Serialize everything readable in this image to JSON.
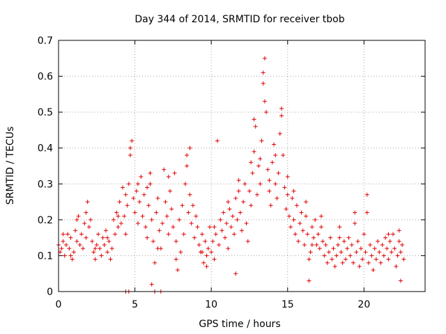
{
  "chart_data": {
    "type": "scatter",
    "title": "Day 344 of 2014, SRMTID for receiver tbob",
    "xlabel": "GPS time / hours",
    "ylabel": "SRMTID / TECUs",
    "xlim": [
      0,
      24
    ],
    "ylim": [
      0,
      0.7
    ],
    "xticks": [
      0,
      5,
      10,
      15,
      20
    ],
    "yticks": [
      0,
      0.1,
      0.2,
      0.3,
      0.4,
      0.5,
      0.6,
      0.7
    ],
    "xtick_labels": [
      "0",
      "5",
      "10",
      "15",
      "20"
    ],
    "ytick_labels": [
      "0",
      "0.1",
      "0.2",
      "0.3",
      "0.4",
      "0.5",
      "0.6",
      "0.7"
    ],
    "grid": true,
    "marker": "plus",
    "color": "#e00000",
    "series": [
      {
        "name": "SRMTID",
        "points": [
          [
            0.0,
            0.13
          ],
          [
            0.1,
            0.11
          ],
          [
            0.2,
            0.12
          ],
          [
            0.3,
            0.14
          ],
          [
            0.4,
            0.1
          ],
          [
            0.5,
            0.13
          ],
          [
            0.6,
            0.16
          ],
          [
            0.7,
            0.12
          ],
          [
            0.8,
            0.15
          ],
          [
            0.9,
            0.09
          ],
          [
            1.0,
            0.11
          ],
          [
            1.1,
            0.17
          ],
          [
            1.2,
            0.14
          ],
          [
            1.3,
            0.21
          ],
          [
            1.4,
            0.13
          ],
          [
            1.5,
            0.16
          ],
          [
            1.6,
            0.12
          ],
          [
            1.7,
            0.19
          ],
          [
            1.8,
            0.15
          ],
          [
            1.9,
            0.25
          ],
          [
            2.0,
            0.18
          ],
          [
            2.1,
            0.2
          ],
          [
            2.2,
            0.14
          ],
          [
            2.3,
            0.11
          ],
          [
            2.4,
            0.09
          ],
          [
            2.5,
            0.13
          ],
          [
            2.6,
            0.16
          ],
          [
            2.7,
            0.12
          ],
          [
            2.8,
            0.1
          ],
          [
            2.9,
            0.15
          ],
          [
            3.0,
            0.13
          ],
          [
            3.1,
            0.17
          ],
          [
            3.2,
            0.11
          ],
          [
            3.3,
            0.14
          ],
          [
            3.4,
            0.09
          ],
          [
            3.5,
            0.12
          ],
          [
            3.6,
            0.2
          ],
          [
            3.7,
            0.16
          ],
          [
            3.8,
            0.22
          ],
          [
            3.9,
            0.18
          ],
          [
            4.0,
            0.25
          ],
          [
            4.1,
            0.19
          ],
          [
            4.2,
            0.29
          ],
          [
            4.3,
            0.21
          ],
          [
            4.4,
            0.16
          ],
          [
            4.5,
            0.24
          ],
          [
            4.6,
            0.3
          ],
          [
            4.7,
            0.38
          ],
          [
            4.8,
            0.42
          ],
          [
            4.9,
            0.26
          ],
          [
            5.0,
            0.22
          ],
          [
            5.1,
            0.28
          ],
          [
            5.2,
            0.19
          ],
          [
            5.3,
            0.25
          ],
          [
            5.4,
            0.32
          ],
          [
            5.5,
            0.21
          ],
          [
            5.6,
            0.27
          ],
          [
            5.7,
            0.18
          ],
          [
            5.8,
            0.15
          ],
          [
            5.9,
            0.24
          ],
          [
            6.0,
            0.3
          ],
          [
            6.1,
            0.2
          ],
          [
            6.2,
            0.14
          ],
          [
            6.3,
            0.08
          ],
          [
            6.4,
            0.22
          ],
          [
            6.5,
            0.26
          ],
          [
            6.6,
            0.17
          ],
          [
            6.7,
            0.12
          ],
          [
            6.8,
            0.19
          ],
          [
            6.9,
            0.34
          ],
          [
            7.0,
            0.25
          ],
          [
            7.1,
            0.21
          ],
          [
            7.2,
            0.16
          ],
          [
            7.3,
            0.28
          ],
          [
            7.4,
            0.23
          ],
          [
            7.5,
            0.18
          ],
          [
            7.6,
            0.33
          ],
          [
            7.7,
            0.14
          ],
          [
            7.8,
            0.06
          ],
          [
            7.9,
            0.2
          ],
          [
            8.0,
            0.11
          ],
          [
            8.1,
            0.24
          ],
          [
            8.2,
            0.16
          ],
          [
            8.3,
            0.3
          ],
          [
            8.4,
            0.38
          ],
          [
            8.5,
            0.22
          ],
          [
            8.6,
            0.27
          ],
          [
            8.7,
            0.19
          ],
          [
            8.8,
            0.24
          ],
          [
            8.9,
            0.15
          ],
          [
            9.0,
            0.21
          ],
          [
            9.1,
            0.18
          ],
          [
            9.2,
            0.13
          ],
          [
            9.3,
            0.11
          ],
          [
            9.4,
            0.16
          ],
          [
            9.5,
            0.08
          ],
          [
            9.6,
            0.14
          ],
          [
            9.7,
            0.1
          ],
          [
            9.8,
            0.12
          ],
          [
            9.9,
            0.18
          ],
          [
            10.0,
            0.11
          ],
          [
            10.1,
            0.14
          ],
          [
            10.2,
            0.09
          ],
          [
            10.3,
            0.16
          ],
          [
            10.4,
            0.42
          ],
          [
            10.5,
            0.13
          ],
          [
            10.6,
            0.2
          ],
          [
            10.7,
            0.17
          ],
          [
            10.8,
            0.22
          ],
          [
            10.9,
            0.15
          ],
          [
            11.0,
            0.19
          ],
          [
            11.1,
            0.12
          ],
          [
            11.2,
            0.23
          ],
          [
            11.3,
            0.18
          ],
          [
            11.4,
            0.21
          ],
          [
            11.5,
            0.16
          ],
          [
            11.6,
            0.26
          ],
          [
            11.7,
            0.2
          ],
          [
            11.8,
            0.28
          ],
          [
            11.9,
            0.22
          ],
          [
            12.0,
            0.17
          ],
          [
            12.1,
            0.25
          ],
          [
            12.2,
            0.3
          ],
          [
            12.3,
            0.19
          ],
          [
            12.4,
            0.14
          ],
          [
            12.5,
            0.28
          ],
          [
            12.6,
            0.24
          ],
          [
            12.7,
            0.33
          ],
          [
            12.8,
            0.39
          ],
          [
            12.9,
            0.46
          ],
          [
            13.0,
            0.27
          ],
          [
            13.1,
            0.35
          ],
          [
            13.2,
            0.3
          ],
          [
            13.3,
            0.42
          ],
          [
            13.4,
            0.58
          ],
          [
            13.5,
            0.65
          ],
          [
            13.6,
            0.5
          ],
          [
            13.7,
            0.34
          ],
          [
            13.8,
            0.28
          ],
          [
            13.9,
            0.24
          ],
          [
            14.0,
            0.36
          ],
          [
            14.1,
            0.41
          ],
          [
            14.2,
            0.3
          ],
          [
            14.3,
            0.26
          ],
          [
            14.4,
            0.33
          ],
          [
            14.5,
            0.44
          ],
          [
            14.6,
            0.51
          ],
          [
            14.7,
            0.38
          ],
          [
            14.8,
            0.29
          ],
          [
            14.9,
            0.23
          ],
          [
            15.0,
            0.27
          ],
          [
            15.1,
            0.21
          ],
          [
            15.2,
            0.18
          ],
          [
            15.3,
            0.26
          ],
          [
            15.4,
            0.2
          ],
          [
            15.5,
            0.16
          ],
          [
            15.6,
            0.24
          ],
          [
            15.7,
            0.14
          ],
          [
            15.8,
            0.19
          ],
          [
            15.9,
            0.22
          ],
          [
            16.0,
            0.17
          ],
          [
            16.1,
            0.13
          ],
          [
            16.2,
            0.21
          ],
          [
            16.3,
            0.16
          ],
          [
            16.4,
            0.09
          ],
          [
            16.5,
            0.11
          ],
          [
            16.6,
            0.18
          ],
          [
            16.7,
            0.15
          ],
          [
            16.8,
            0.2
          ],
          [
            16.9,
            0.13
          ],
          [
            17.0,
            0.16
          ],
          [
            17.1,
            0.12
          ],
          [
            17.2,
            0.18
          ],
          [
            17.3,
            0.14
          ],
          [
            17.4,
            0.1
          ],
          [
            17.5,
            0.13
          ],
          [
            17.6,
            0.08
          ],
          [
            17.7,
            0.11
          ],
          [
            17.8,
            0.15
          ],
          [
            17.9,
            0.09
          ],
          [
            18.0,
            0.12
          ],
          [
            18.1,
            0.07
          ],
          [
            18.2,
            0.1
          ],
          [
            18.3,
            0.13
          ],
          [
            18.4,
            0.18
          ],
          [
            18.5,
            0.11
          ],
          [
            18.6,
            0.08
          ],
          [
            18.7,
            0.14
          ],
          [
            18.8,
            0.09
          ],
          [
            18.9,
            0.12
          ],
          [
            19.0,
            0.15
          ],
          [
            19.1,
            0.1
          ],
          [
            19.2,
            0.13
          ],
          [
            19.3,
            0.08
          ],
          [
            19.4,
            0.19
          ],
          [
            19.5,
            0.11
          ],
          [
            19.6,
            0.14
          ],
          [
            19.7,
            0.07
          ],
          [
            19.8,
            0.12
          ],
          [
            19.9,
            0.09
          ],
          [
            20.0,
            0.16
          ],
          [
            20.1,
            0.11
          ],
          [
            20.2,
            0.22
          ],
          [
            20.3,
            0.08
          ],
          [
            20.4,
            0.13
          ],
          [
            20.5,
            0.1
          ],
          [
            20.6,
            0.06
          ],
          [
            20.7,
            0.12
          ],
          [
            20.8,
            0.09
          ],
          [
            20.9,
            0.14
          ],
          [
            21.0,
            0.11
          ],
          [
            21.1,
            0.08
          ],
          [
            21.2,
            0.13
          ],
          [
            21.3,
            0.1
          ],
          [
            21.4,
            0.15
          ],
          [
            21.5,
            0.12
          ],
          [
            21.6,
            0.09
          ],
          [
            21.7,
            0.14
          ],
          [
            21.8,
            0.11
          ],
          [
            21.9,
            0.16
          ],
          [
            22.0,
            0.12
          ],
          [
            22.1,
            0.07
          ],
          [
            22.2,
            0.1
          ],
          [
            22.3,
            0.14
          ],
          [
            22.4,
            0.11
          ],
          [
            22.5,
            0.13
          ],
          [
            22.6,
            0.09
          ],
          [
            0.3,
            0.16
          ],
          [
            0.8,
            0.1
          ],
          [
            1.2,
            0.2
          ],
          [
            1.8,
            0.22
          ],
          [
            2.4,
            0.12
          ],
          [
            3.2,
            0.15
          ],
          [
            3.9,
            0.21
          ],
          [
            4.4,
            0.27
          ],
          [
            4.7,
            0.4
          ],
          [
            5.2,
            0.3
          ],
          [
            5.8,
            0.29
          ],
          [
            6.0,
            0.33
          ],
          [
            6.5,
            0.12
          ],
          [
            7.2,
            0.32
          ],
          [
            7.7,
            0.09
          ],
          [
            8.4,
            0.35
          ],
          [
            8.6,
            0.4
          ],
          [
            9.4,
            0.11
          ],
          [
            9.7,
            0.07
          ],
          [
            10.2,
            0.18
          ],
          [
            11.1,
            0.25
          ],
          [
            11.8,
            0.31
          ],
          [
            12.6,
            0.36
          ],
          [
            12.8,
            0.48
          ],
          [
            13.2,
            0.37
          ],
          [
            13.4,
            0.61
          ],
          [
            13.5,
            0.53
          ],
          [
            13.8,
            0.31
          ],
          [
            14.2,
            0.38
          ],
          [
            14.6,
            0.49
          ],
          [
            15.0,
            0.32
          ],
          [
            15.4,
            0.28
          ],
          [
            16.2,
            0.25
          ],
          [
            16.6,
            0.13
          ],
          [
            17.2,
            0.21
          ],
          [
            18.4,
            0.15
          ],
          [
            19.4,
            0.22
          ],
          [
            20.2,
            0.27
          ],
          [
            21.6,
            0.16
          ],
          [
            22.3,
            0.17
          ],
          [
            6.1,
            0.02
          ],
          [
            6.3,
            0.0
          ],
          [
            6.7,
            0.0
          ],
          [
            4.4,
            0.0
          ],
          [
            4.6,
            0.0
          ],
          [
            11.6,
            0.05
          ],
          [
            16.4,
            0.03
          ],
          [
            22.4,
            0.03
          ]
        ]
      }
    ]
  }
}
